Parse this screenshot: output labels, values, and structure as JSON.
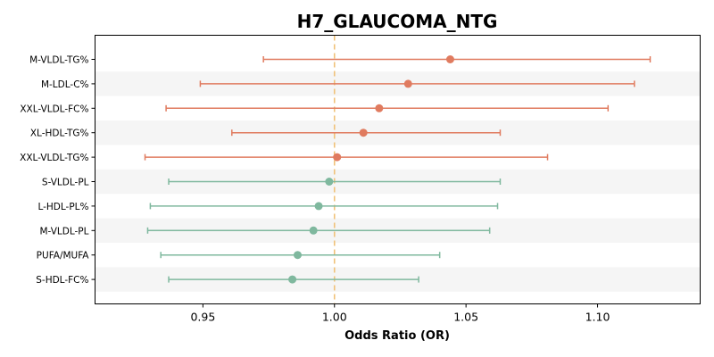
{
  "chart_data": {
    "type": "forest",
    "title": "H7_GLAUCOMA_NTG",
    "xlabel": "Odds Ratio (OR)",
    "xlim": [
      0.909,
      1.139
    ],
    "xticks": [
      0.95,
      1.0,
      1.05,
      1.1
    ],
    "xtick_labels": [
      "0.95",
      "1.00",
      "1.05",
      "1.10"
    ],
    "reference_line": 1.0,
    "grid": false,
    "colors": {
      "positive": "#e07b5f",
      "negative": "#7fb89e",
      "reference": "#f0c27a",
      "band": "#f5f5f5"
    },
    "rows": [
      {
        "label": "M-VLDL-TG%",
        "or": 1.044,
        "lower": 0.973,
        "upper": 1.12,
        "group": "positive"
      },
      {
        "label": "M-LDL-C%",
        "or": 1.028,
        "lower": 0.949,
        "upper": 1.114,
        "group": "positive"
      },
      {
        "label": "XXL-VLDL-FC%",
        "or": 1.017,
        "lower": 0.936,
        "upper": 1.104,
        "group": "positive"
      },
      {
        "label": "XL-HDL-TG%",
        "or": 1.011,
        "lower": 0.961,
        "upper": 1.063,
        "group": "positive"
      },
      {
        "label": "XXL-VLDL-TG%",
        "or": 1.001,
        "lower": 0.928,
        "upper": 1.081,
        "group": "positive"
      },
      {
        "label": "S-VLDL-PL",
        "or": 0.998,
        "lower": 0.937,
        "upper": 1.063,
        "group": "negative"
      },
      {
        "label": "L-HDL-PL%",
        "or": 0.994,
        "lower": 0.93,
        "upper": 1.062,
        "group": "negative"
      },
      {
        "label": "M-VLDL-PL",
        "or": 0.992,
        "lower": 0.929,
        "upper": 1.059,
        "group": "negative"
      },
      {
        "label": "PUFA/MUFA",
        "or": 0.986,
        "lower": 0.934,
        "upper": 1.04,
        "group": "negative"
      },
      {
        "label": "S-HDL-FC%",
        "or": 0.984,
        "lower": 0.937,
        "upper": 1.032,
        "group": "negative"
      }
    ]
  }
}
